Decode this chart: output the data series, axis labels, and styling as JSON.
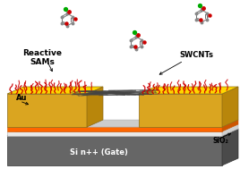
{
  "bg_color": "#ffffff",
  "label_reactive_sams": "Reactive\nSAMs",
  "label_au": "Au",
  "label_swcnts": "SWCNTs",
  "label_si": "Si n++ (Gate)",
  "label_sio2": "SiO₂",
  "gold_front": "#DAA520",
  "gold_top": "#FFD700",
  "gold_side": "#B8860B",
  "gold_edge": "#8B6914",
  "orange_color": "#FF6600",
  "orange_dark": "#CC5500",
  "white_layer": "#E8E8E8",
  "white_layer_side": "#D0D0D0",
  "si_front": "#666666",
  "si_top": "#777777",
  "si_side": "#4a4a4a",
  "si_edge": "#333333",
  "channel_color": "#d8d8d8",
  "red_sam": "#CC0000",
  "cnt_color": "#444444",
  "sio2_label_color": "#333333"
}
